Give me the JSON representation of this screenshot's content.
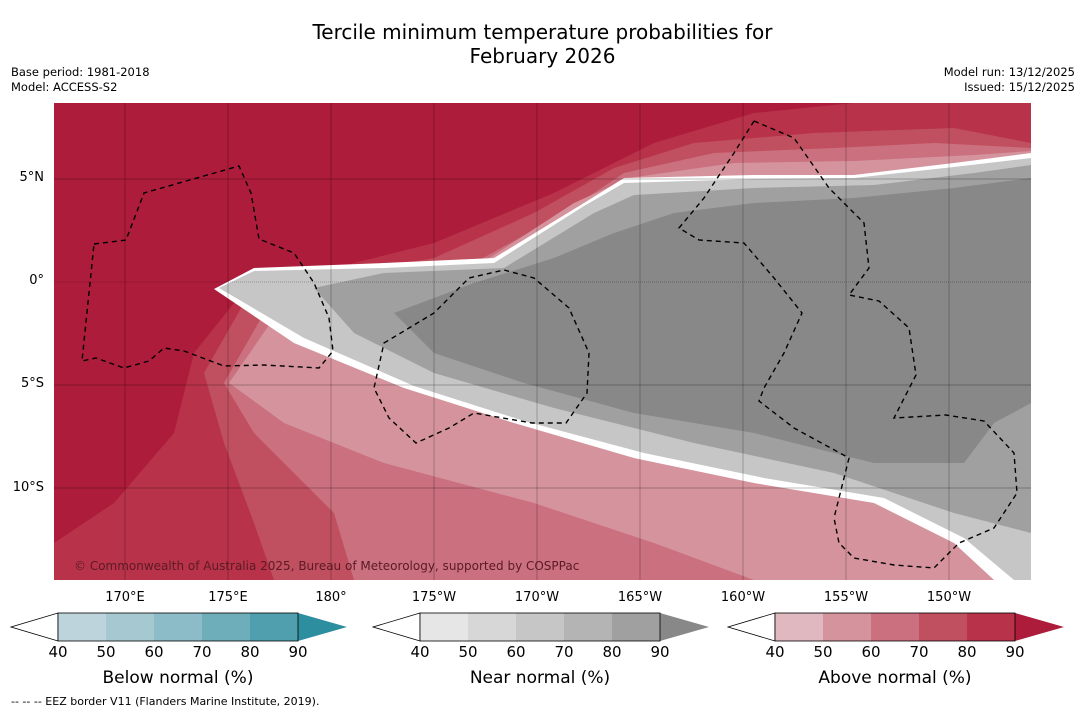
{
  "title": {
    "line1": "Tercile minimum temperature probabilities for",
    "line2": "February 2026"
  },
  "meta": {
    "base_period": "Base period: 1981-2018",
    "model": "Model: ACCESS-S2",
    "model_run": "Model run: 13/12/2025",
    "issued": "Issued: 15/12/2025"
  },
  "axes": {
    "lat_labels": [
      "5°N",
      "0°",
      "5°S",
      "10°S"
    ],
    "lon_labels": [
      "170°E",
      "175°E",
      "180°",
      "175°W",
      "170°W",
      "165°W",
      "160°W",
      "155°W",
      "150°W"
    ]
  },
  "copyright": "© Commonwealth of Australia 2025, Bureau of Meteorology, supported by COSPPac",
  "colorbars": [
    {
      "title": "Below normal (%)",
      "ticks": [
        "40",
        "50",
        "60",
        "70",
        "80",
        "90"
      ],
      "colors": [
        "#bdd4dc",
        "#a6c8d0",
        "#8bbcc7",
        "#6eaebb",
        "#4f9fae",
        "#2d8ea0"
      ]
    },
    {
      "title": "Near normal (%)",
      "ticks": [
        "40",
        "50",
        "60",
        "70",
        "80",
        "90"
      ],
      "colors": [
        "#e6e6e6",
        "#d7d7d7",
        "#c6c6c6",
        "#b4b4b4",
        "#a0a0a0",
        "#888888"
      ]
    },
    {
      "title": "Above normal (%)",
      "ticks": [
        "40",
        "50",
        "60",
        "70",
        "80",
        "90"
      ],
      "colors": [
        "#e0b8bf",
        "#d5949d",
        "#cb707e",
        "#c0505f",
        "#b8334a",
        "#ad1c3a"
      ]
    }
  ],
  "footnote": "--  --  -- EEZ border V11 (Flanders Marine Institute, 2019)."
}
